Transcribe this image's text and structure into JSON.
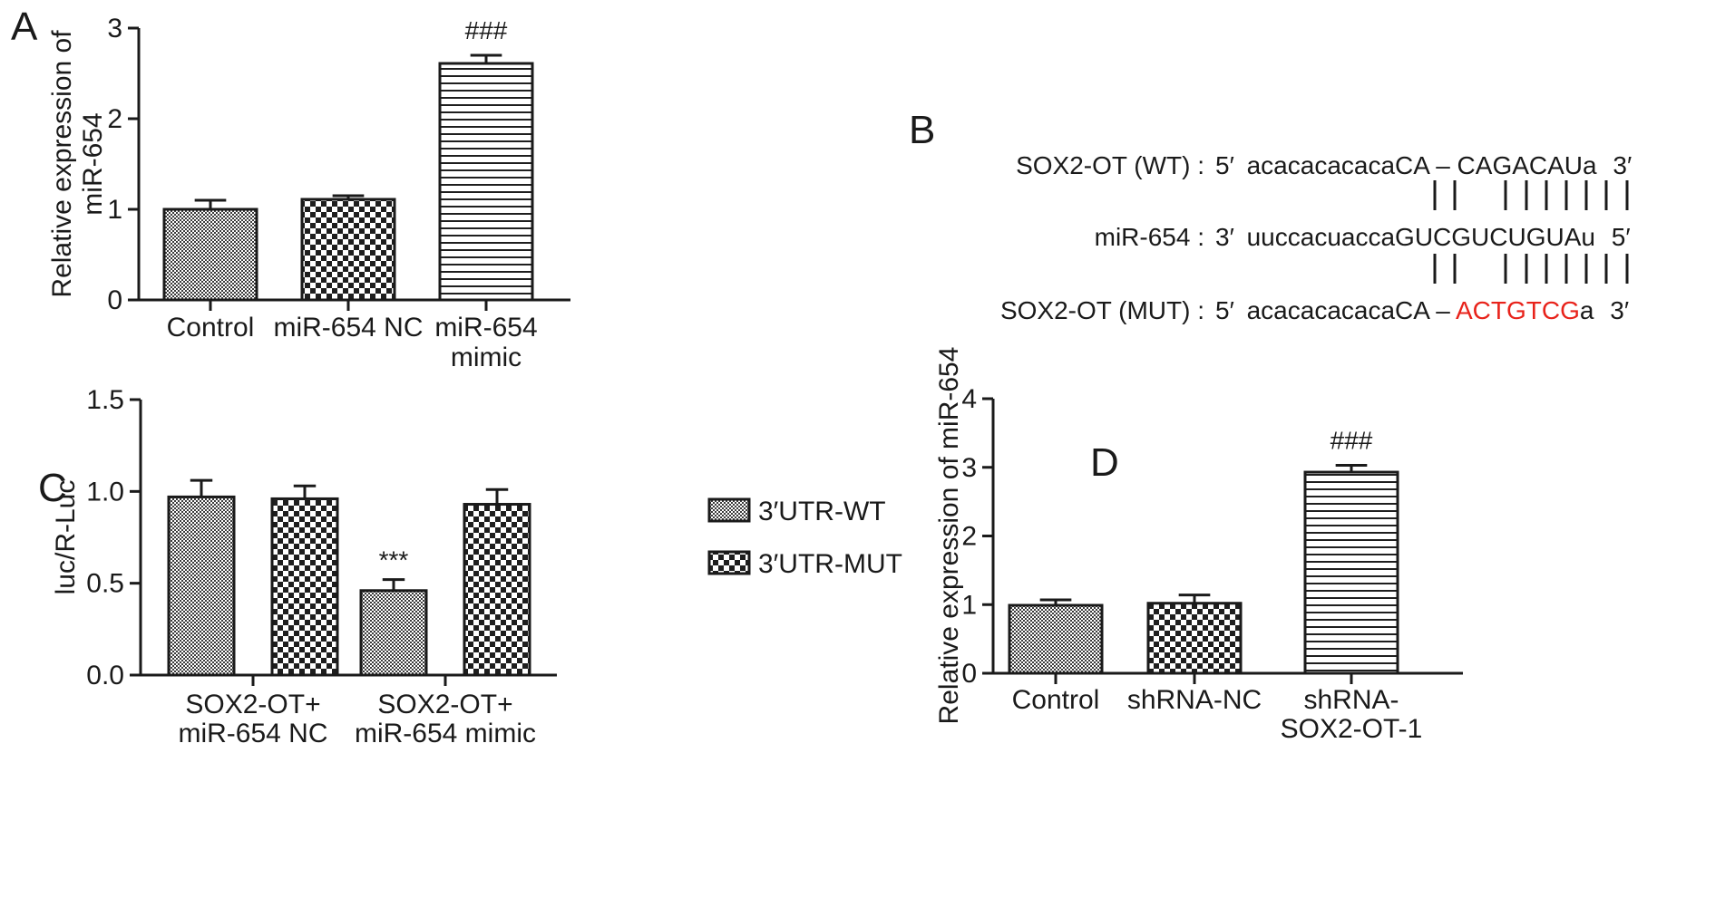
{
  "panel_labels": {
    "A": "A",
    "B": "B",
    "C": "C",
    "D": "D"
  },
  "chart_data": [
    {
      "panel": "A",
      "type": "bar",
      "categories": [
        [
          "Control"
        ],
        [
          "miR-654 NC"
        ],
        [
          "miR-654",
          "mimic"
        ]
      ],
      "values": [
        1.0,
        1.11,
        2.61
      ],
      "errors": [
        0.1,
        0.04,
        0.09
      ],
      "patterns": [
        "dense",
        "checker",
        "hlines"
      ],
      "annotations": [
        "",
        "",
        "###"
      ],
      "ylabel": [
        "Relative expression of",
        "miR-654"
      ],
      "ylim": [
        0,
        3
      ],
      "yticks": [
        "0",
        "1",
        "2",
        "3"
      ]
    },
    {
      "panel": "C",
      "type": "bar",
      "categories": [
        [
          "SOX2-OT+",
          "miR-654 NC"
        ],
        [
          "SOX2-OT+",
          "miR-654 mimic"
        ]
      ],
      "series": [
        {
          "name": "3′UTR-WT",
          "pattern": "dense",
          "values": [
            0.97,
            0.46
          ],
          "errors": [
            0.09,
            0.06
          ],
          "annotations": [
            "",
            "***"
          ]
        },
        {
          "name": "3′UTR-MUT",
          "pattern": "checker",
          "values": [
            0.96,
            0.93
          ],
          "errors": [
            0.07,
            0.08
          ],
          "annotations": [
            "",
            ""
          ]
        }
      ],
      "ylabel": [
        "luc/R-Luc"
      ],
      "ylim": [
        0,
        1.5
      ],
      "yticks": [
        "0.0",
        "0.5",
        "1.0",
        "1.5"
      ],
      "legend": "right"
    },
    {
      "panel": "D",
      "type": "bar",
      "categories": [
        [
          "Control"
        ],
        [
          "shRNA-NC"
        ],
        [
          "shRNA-",
          "SOX2-OT-1"
        ]
      ],
      "values": [
        0.99,
        1.02,
        2.93
      ],
      "errors": [
        0.08,
        0.12,
        0.1
      ],
      "patterns": [
        "dense",
        "checker",
        "hlines"
      ],
      "annotations": [
        "",
        "",
        "###"
      ],
      "ylabel": [
        "Relative expression of miR-654"
      ],
      "ylim": [
        0,
        4
      ],
      "yticks": [
        "0",
        "1",
        "2",
        "3",
        "4"
      ]
    }
  ],
  "sequence_panel": {
    "rows": [
      {
        "label": "SOX2-OT  (WT) :",
        "prime5": "5′",
        "lower": "acacacacaca",
        "seed1": "CA",
        "dash": "–",
        "seed2": "CAGACAU",
        "tail": "a",
        "prime3": "3′",
        "mutant": false
      },
      {
        "label": "miR-654 :",
        "prime5": "3′",
        "lower": "uuccacuacca",
        "seed1": "GUCGUCUGUA",
        "dash": "",
        "seed2": "",
        "tail": "u",
        "prime3": "5′",
        "mutant": false
      },
      {
        "label": "SOX2-OT  (MUT) :",
        "prime5": "5′",
        "lower": "acacacacaca",
        "seed1": "CA",
        "dash": "–",
        "seed2": "ACTGTCG",
        "tail": "a",
        "prime3": "3′",
        "mutant": true
      }
    ],
    "mutant_color": "#e8231b"
  }
}
